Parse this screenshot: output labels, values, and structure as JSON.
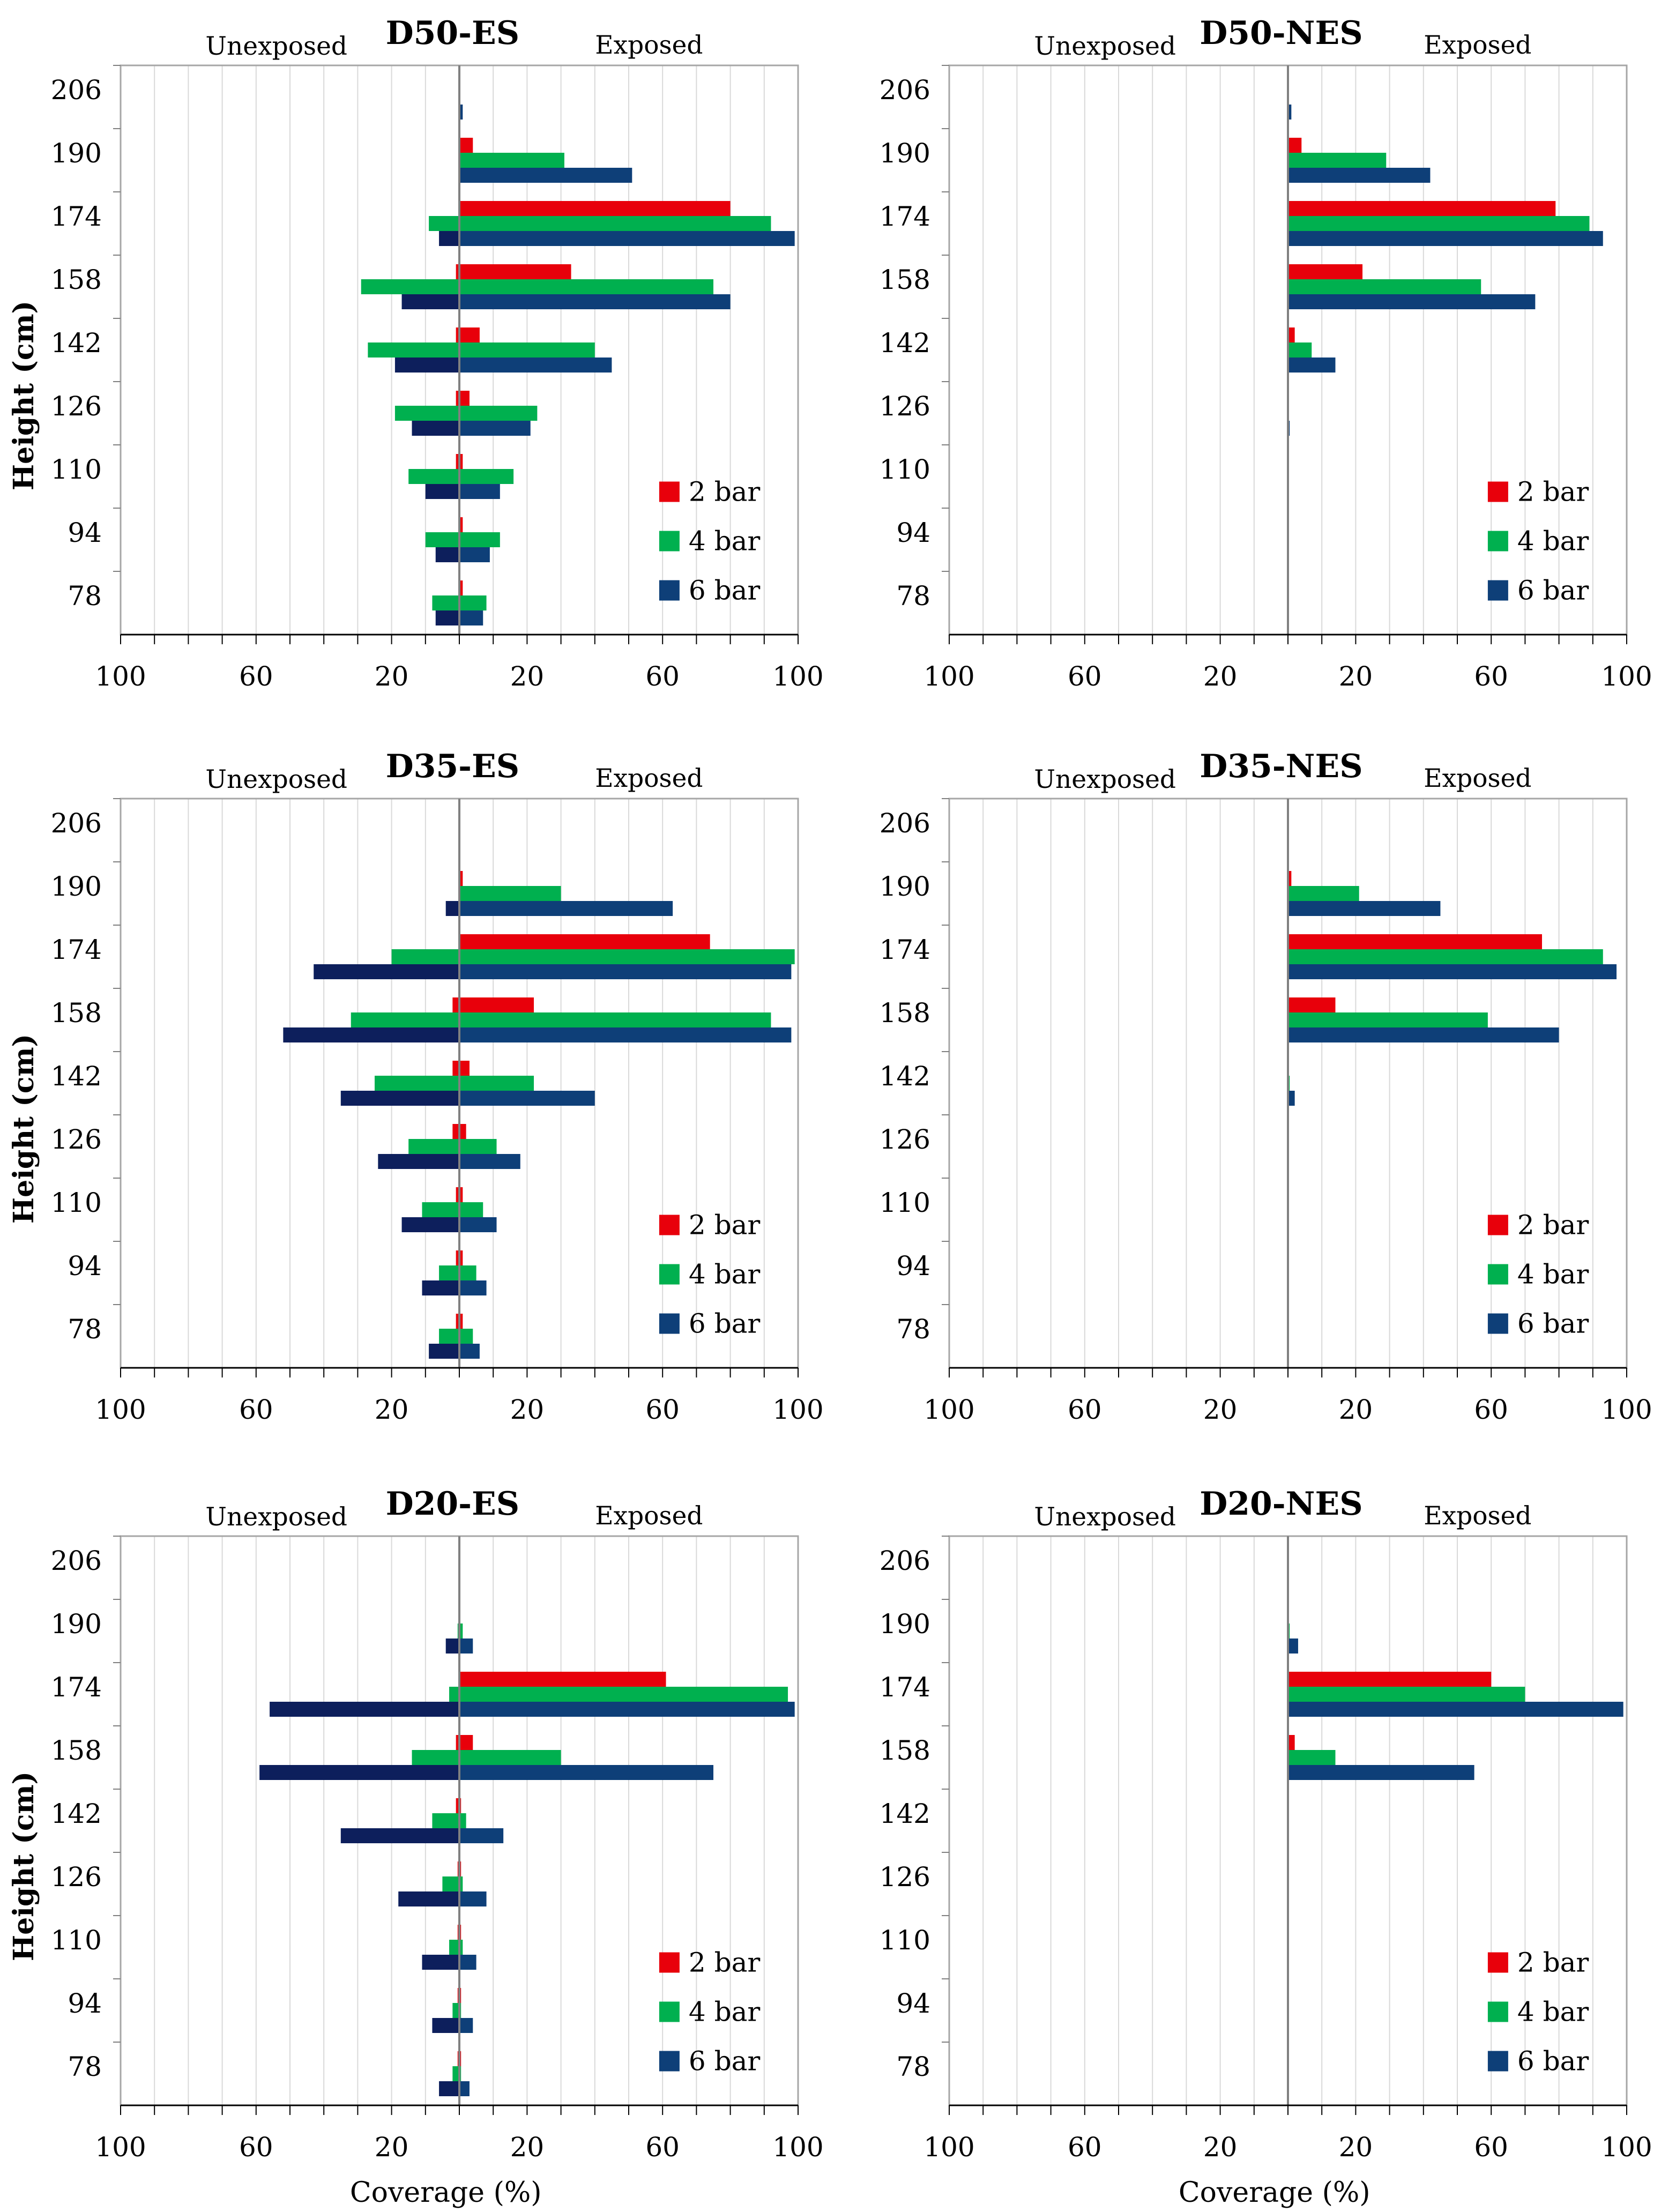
{
  "figure": {
    "x_axis_title": "Coverage (%)",
    "y_axis_title": "Height (cm)"
  },
  "colors": {
    "bar2": "#e8000b",
    "bar4": "#00b04f",
    "bar6": "#0e3f78",
    "bar6_unexposed": "#0d1f5c",
    "grid": "#d9d9d9",
    "axis": "#808080"
  },
  "chart_data": [
    {
      "type": "bar",
      "orientation": "horizontal",
      "title": "D50-ES",
      "left_label": "Unexposed",
      "right_label": "Exposed",
      "xlabel": "",
      "ylabel": "Height (cm)",
      "x_tick_labels": [
        "100",
        "60",
        "20",
        "20",
        "60",
        "100"
      ],
      "xlim": [
        -100,
        100
      ],
      "categories": [
        206,
        190,
        174,
        158,
        142,
        126,
        110,
        94,
        78
      ],
      "series": [
        {
          "name": "2 bar",
          "exposed": [
            0,
            4,
            80,
            33,
            6,
            3,
            1,
            1,
            1
          ],
          "unexposed": [
            0,
            0,
            0,
            1,
            1,
            1,
            1,
            0,
            0
          ]
        },
        {
          "name": "4 bar",
          "exposed": [
            0,
            31,
            92,
            75,
            40,
            23,
            16,
            12,
            8
          ],
          "unexposed": [
            0,
            0,
            9,
            29,
            27,
            19,
            15,
            10,
            8
          ]
        },
        {
          "name": "6 bar",
          "exposed": [
            1,
            51,
            99,
            80,
            45,
            21,
            12,
            9,
            7
          ],
          "unexposed": [
            0,
            0,
            6,
            17,
            19,
            14,
            10,
            7,
            7
          ]
        }
      ],
      "legend": [
        "2 bar",
        "4 bar",
        "6 bar"
      ]
    },
    {
      "type": "bar",
      "orientation": "horizontal",
      "title": "D50-NES",
      "left_label": "Unexposed",
      "right_label": "Exposed",
      "xlabel": "",
      "ylabel": "",
      "x_tick_labels": [
        "100",
        "60",
        "20",
        "20",
        "60",
        "100"
      ],
      "xlim": [
        -100,
        100
      ],
      "categories": [
        206,
        190,
        174,
        158,
        142,
        126,
        110,
        94,
        78
      ],
      "series": [
        {
          "name": "2 bar",
          "exposed": [
            0,
            4,
            79,
            22,
            2,
            0,
            0,
            0,
            0
          ],
          "unexposed": [
            0,
            0,
            0,
            0,
            0,
            0,
            0,
            0,
            0
          ]
        },
        {
          "name": "4 bar",
          "exposed": [
            0,
            29,
            89,
            57,
            7,
            0,
            0,
            0,
            0
          ],
          "unexposed": [
            0,
            0,
            0,
            0,
            0,
            0,
            0,
            0,
            0
          ]
        },
        {
          "name": "6 bar",
          "exposed": [
            1,
            42,
            93,
            73,
            14,
            0.5,
            0,
            0,
            0
          ],
          "unexposed": [
            0,
            0,
            0,
            0,
            0,
            0,
            0,
            0,
            0
          ]
        }
      ],
      "legend": [
        "2 bar",
        "4 bar",
        "6 bar"
      ]
    },
    {
      "type": "bar",
      "orientation": "horizontal",
      "title": "D35-ES",
      "left_label": "Unexposed",
      "right_label": "Exposed",
      "xlabel": "",
      "ylabel": "Height (cm)",
      "x_tick_labels": [
        "100",
        "60",
        "20",
        "20",
        "60",
        "100"
      ],
      "xlim": [
        -100,
        100
      ],
      "categories": [
        206,
        190,
        174,
        158,
        142,
        126,
        110,
        94,
        78
      ],
      "series": [
        {
          "name": "2 bar",
          "exposed": [
            0,
            1,
            74,
            22,
            3,
            2,
            1,
            1,
            1
          ],
          "unexposed": [
            0,
            0,
            0,
            2,
            2,
            2,
            1,
            1,
            1
          ]
        },
        {
          "name": "4 bar",
          "exposed": [
            0,
            30,
            99,
            92,
            22,
            11,
            7,
            5,
            4
          ],
          "unexposed": [
            0,
            0,
            20,
            32,
            25,
            15,
            11,
            6,
            6
          ]
        },
        {
          "name": "6 bar",
          "exposed": [
            0,
            63,
            98,
            98,
            40,
            18,
            11,
            8,
            6
          ],
          "unexposed": [
            0,
            4,
            43,
            52,
            35,
            24,
            17,
            11,
            9
          ]
        }
      ],
      "legend": [
        "2 bar",
        "4 bar",
        "6 bar"
      ]
    },
    {
      "type": "bar",
      "orientation": "horizontal",
      "title": "D35-NES",
      "left_label": "Unexposed",
      "right_label": "Exposed",
      "xlabel": "",
      "ylabel": "",
      "x_tick_labels": [
        "100",
        "60",
        "20",
        "20",
        "60",
        "100"
      ],
      "xlim": [
        -100,
        100
      ],
      "categories": [
        206,
        190,
        174,
        158,
        142,
        126,
        110,
        94,
        78
      ],
      "series": [
        {
          "name": "2 bar",
          "exposed": [
            0,
            1,
            75,
            14,
            0,
            0,
            0,
            0,
            0
          ],
          "unexposed": [
            0,
            0,
            0,
            0,
            0,
            0,
            0,
            0,
            0
          ]
        },
        {
          "name": "4 bar",
          "exposed": [
            0,
            21,
            93,
            59,
            0.5,
            0,
            0,
            0,
            0
          ],
          "unexposed": [
            0,
            0,
            0,
            0,
            0,
            0,
            0,
            0,
            0
          ]
        },
        {
          "name": "6 bar",
          "exposed": [
            0,
            45,
            97,
            80,
            2,
            0,
            0,
            0,
            0
          ],
          "unexposed": [
            0,
            0,
            0,
            0,
            0,
            0,
            0,
            0,
            0
          ]
        }
      ],
      "legend": [
        "2 bar",
        "4 bar",
        "6 bar"
      ]
    },
    {
      "type": "bar",
      "orientation": "horizontal",
      "title": "D20-ES",
      "left_label": "Unexposed",
      "right_label": "Exposed",
      "xlabel": "Coverage (%)",
      "ylabel": "Height (cm)",
      "x_tick_labels": [
        "100",
        "60",
        "20",
        "20",
        "60",
        "100"
      ],
      "xlim": [
        -100,
        100
      ],
      "categories": [
        206,
        190,
        174,
        158,
        142,
        126,
        110,
        94,
        78
      ],
      "series": [
        {
          "name": "2 bar",
          "exposed": [
            0,
            0,
            61,
            4,
            0.5,
            0.5,
            0.5,
            0.5,
            0.5
          ],
          "unexposed": [
            0,
            0,
            0,
            1,
            1,
            0.5,
            0.5,
            0.5,
            0.5
          ]
        },
        {
          "name": "4 bar",
          "exposed": [
            0,
            1,
            97,
            30,
            2,
            1,
            1,
            0.5,
            0.5
          ],
          "unexposed": [
            0,
            0.5,
            3,
            14,
            8,
            5,
            3,
            2,
            2
          ]
        },
        {
          "name": "6 bar",
          "exposed": [
            0,
            4,
            99,
            75,
            13,
            8,
            5,
            4,
            3
          ],
          "unexposed": [
            0,
            4,
            56,
            59,
            35,
            18,
            11,
            8,
            6
          ]
        }
      ],
      "legend": [
        "2 bar",
        "4 bar",
        "6 bar"
      ]
    },
    {
      "type": "bar",
      "orientation": "horizontal",
      "title": "D20-NES",
      "left_label": "Unexposed",
      "right_label": "Exposed",
      "xlabel": "Coverage (%)",
      "ylabel": "",
      "x_tick_labels": [
        "100",
        "60",
        "20",
        "20",
        "60",
        "100"
      ],
      "xlim": [
        -100,
        100
      ],
      "categories": [
        206,
        190,
        174,
        158,
        142,
        126,
        110,
        94,
        78
      ],
      "series": [
        {
          "name": "2 bar",
          "exposed": [
            0,
            0,
            60,
            2,
            0,
            0,
            0,
            0,
            0
          ],
          "unexposed": [
            0,
            0,
            0,
            0,
            0,
            0,
            0,
            0,
            0
          ]
        },
        {
          "name": "4 bar",
          "exposed": [
            0,
            0.5,
            70,
            14,
            0,
            0,
            0,
            0,
            0
          ],
          "unexposed": [
            0,
            0,
            0,
            0,
            0,
            0,
            0,
            0,
            0
          ]
        },
        {
          "name": "6 bar",
          "exposed": [
            0,
            3,
            99,
            55,
            0,
            0,
            0,
            0,
            0
          ],
          "unexposed": [
            0,
            0,
            0,
            0,
            0,
            0,
            0,
            0,
            0
          ]
        }
      ],
      "legend": [
        "2 bar",
        "4 bar",
        "6 bar"
      ]
    }
  ]
}
